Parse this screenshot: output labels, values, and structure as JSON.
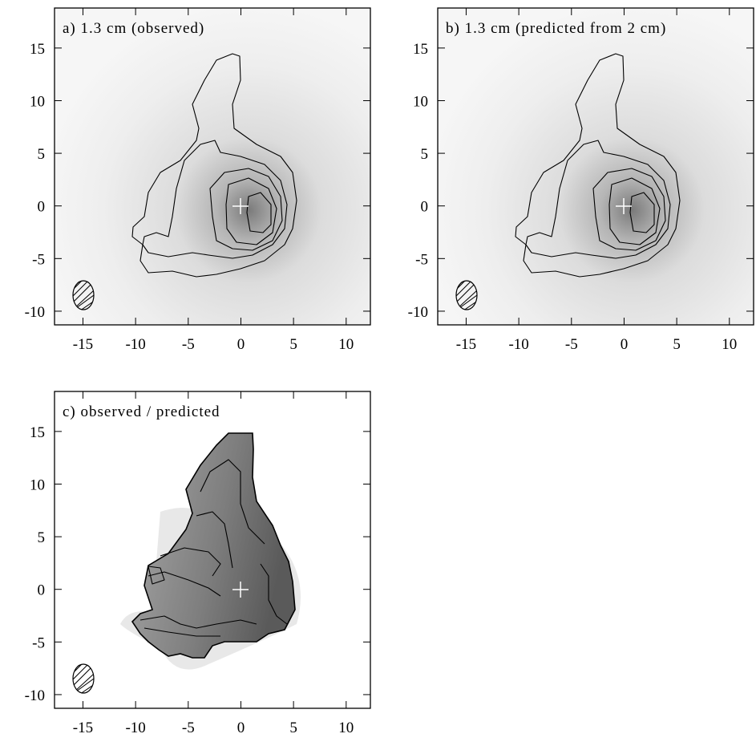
{
  "chart_data": [
    {
      "type": "contour",
      "title": "a) 1.3 cm (observed)",
      "xlim": [
        -17.7,
        12.3
      ],
      "ylim": [
        -11.3,
        18.8
      ],
      "xticks": [
        -15,
        -10,
        -5,
        0,
        5,
        10
      ],
      "yticks": [
        -10,
        -5,
        0,
        5,
        10,
        15
      ]
    },
    {
      "type": "contour",
      "title": "b) 1.3 cm (predicted from 2 cm)",
      "xlim": [
        -17.7,
        12.3
      ],
      "ylim": [
        -11.3,
        18.8
      ],
      "xticks": [
        -15,
        -10,
        -5,
        0,
        5,
        10
      ],
      "yticks": [
        -10,
        -5,
        0,
        5,
        10,
        15
      ]
    },
    {
      "type": "contour",
      "title": "c) observed / predicted",
      "xlim": [
        -17.7,
        12.3
      ],
      "ylim": [
        -11.3,
        18.8
      ],
      "xticks": [
        -15,
        -10,
        -5,
        0,
        5,
        10
      ],
      "yticks": [
        -10,
        -5,
        0,
        5,
        10,
        15
      ]
    }
  ]
}
